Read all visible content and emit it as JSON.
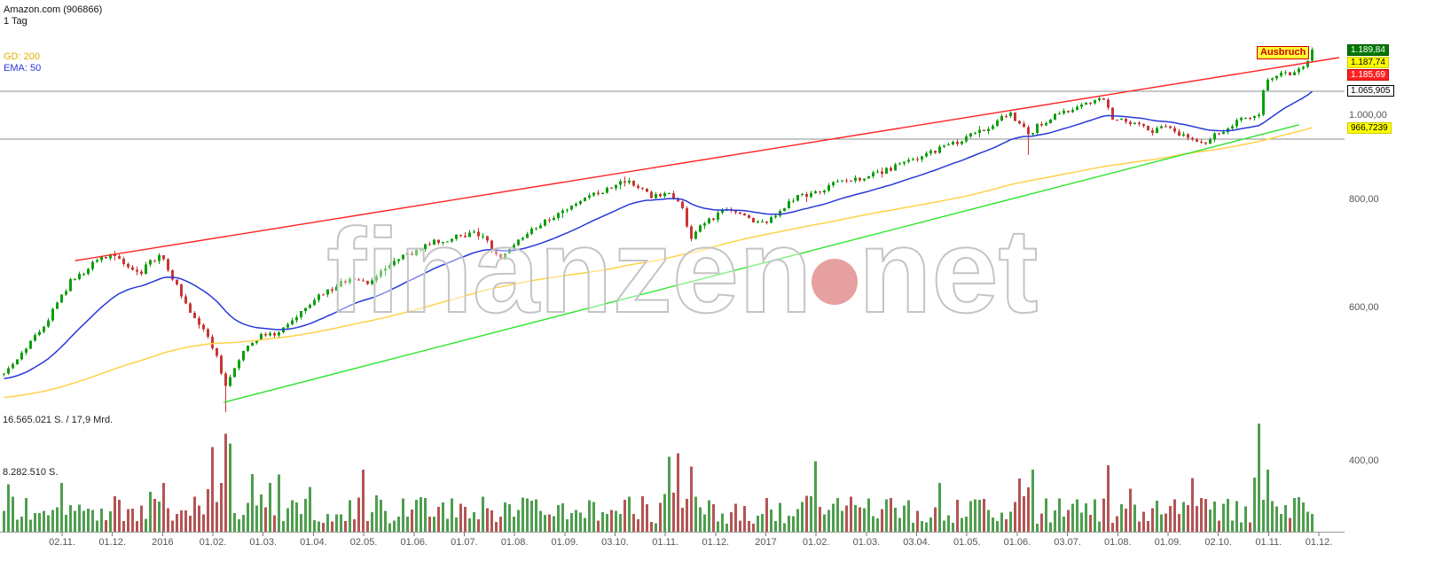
{
  "header": {
    "title": "Amazon.com (906866)",
    "period": "1 Tag"
  },
  "legend": {
    "gd": "GD: 200",
    "ema": "EMA: 50"
  },
  "annotations": {
    "ausbruch": "Ausbruch"
  },
  "watermark": {
    "part1": "finanzen",
    "part2": "net"
  },
  "chart_data": {
    "type": "candlestick+volume",
    "instrument": "Amazon.com",
    "wkn": "906866",
    "timeframe": "1 Tag",
    "y_scale": "log",
    "ylim": [
      380,
      1260
    ],
    "seed": 20171124,
    "candle_count": 296,
    "warmup_start_price": 440,
    "y_ticks": [
      {
        "label": "1.000,00",
        "value": 1000
      },
      {
        "label": "800,00",
        "value": 800
      },
      {
        "label": "600,00",
        "value": 600
      },
      {
        "label": "400,00",
        "value": 400
      }
    ],
    "x_ticks": [
      "02.11.",
      "01.12.",
      "2016",
      "01.02.",
      "01.03.",
      "01.04.",
      "02.05.",
      "01.06.",
      "01.07.",
      "01.08.",
      "01.09.",
      "03.10.",
      "01.11.",
      "01.12.",
      "2017",
      "01.02.",
      "01.03.",
      "03.04.",
      "01.05.",
      "01.06.",
      "03.07.",
      "01.08.",
      "01.09.",
      "02.10.",
      "01.11.",
      "01.12."
    ],
    "price_tags": [
      {
        "text": "1.189,84",
        "value": 1189.84,
        "bg": "#007700",
        "fg": "#ffffff",
        "border": "#005500"
      },
      {
        "text": "1.187,74",
        "value": 1187.74,
        "bg": "#ffff00",
        "fg": "#000000",
        "border": "#cccc00"
      },
      {
        "text": "1.185,69",
        "value": 1185.69,
        "bg": "#ff2222",
        "fg": "#ffffff",
        "border": "#cc0000"
      },
      {
        "text": "1.065,905",
        "value": 1065.905,
        "bg": "#ffffff",
        "fg": "#000000",
        "border": "#000000"
      },
      {
        "text": "966,7239",
        "value": 966.7239,
        "bg": "#ffff00",
        "fg": "#000000",
        "border": "#cccc00"
      }
    ],
    "levels": [
      {
        "price": 1065.905,
        "label": "1.065,905"
      },
      {
        "price": 938,
        "label": ""
      }
    ],
    "trendlines": [
      {
        "name": "resistance",
        "color": "#ff2222",
        "p1": [
          0.056,
          680
        ],
        "p2": [
          1.0,
          1165
        ]
      },
      {
        "name": "support",
        "color": "#2fe42f",
        "p1": [
          0.167,
          467
        ],
        "p2": [
          0.97,
          975
        ]
      }
    ],
    "indicators": [
      {
        "name": "GD 200",
        "color": "#ffd24a",
        "period_candles": 109,
        "end_value": 966.7239
      },
      {
        "name": "EMA 50",
        "color": "#2738d8",
        "period_candles": 27,
        "end_value": 1065.905
      }
    ],
    "long_wicks": [
      {
        "f": 0.17,
        "low": 455
      },
      {
        "f": 0.782,
        "low": 900
      }
    ],
    "price_anchors": [
      [
        0,
        505
      ],
      [
        0.01,
        520
      ],
      [
        0.027,
        560
      ],
      [
        0.041,
        600
      ],
      [
        0.051,
        640
      ],
      [
        0.064,
        665
      ],
      [
        0.074,
        680
      ],
      [
        0.084,
        695
      ],
      [
        0.095,
        672
      ],
      [
        0.105,
        658
      ],
      [
        0.115,
        680
      ],
      [
        0.12,
        692
      ],
      [
        0.132,
        640
      ],
      [
        0.142,
        600
      ],
      [
        0.152,
        572
      ],
      [
        0.162,
        538
      ],
      [
        0.17,
        482
      ],
      [
        0.177,
        512
      ],
      [
        0.186,
        545
      ],
      [
        0.196,
        556
      ],
      [
        0.209,
        560
      ],
      [
        0.22,
        576
      ],
      [
        0.23,
        595
      ],
      [
        0.243,
        620
      ],
      [
        0.257,
        640
      ],
      [
        0.27,
        652
      ],
      [
        0.28,
        641
      ],
      [
        0.294,
        668
      ],
      [
        0.307,
        690
      ],
      [
        0.318,
        700
      ],
      [
        0.331,
        715
      ],
      [
        0.345,
        722
      ],
      [
        0.358,
        731
      ],
      [
        0.368,
        723
      ],
      [
        0.378,
        682
      ],
      [
        0.386,
        696
      ],
      [
        0.399,
        728
      ],
      [
        0.412,
        754
      ],
      [
        0.426,
        770
      ],
      [
        0.439,
        790
      ],
      [
        0.453,
        812
      ],
      [
        0.466,
        830
      ],
      [
        0.476,
        838
      ],
      [
        0.486,
        820
      ],
      [
        0.497,
        806
      ],
      [
        0.507,
        820
      ],
      [
        0.517,
        788
      ],
      [
        0.526,
        718
      ],
      [
        0.534,
        752
      ],
      [
        0.546,
        768
      ],
      [
        0.557,
        780
      ],
      [
        0.568,
        760
      ],
      [
        0.578,
        750
      ],
      [
        0.588,
        762
      ],
      [
        0.598,
        790
      ],
      [
        0.608,
        808
      ],
      [
        0.622,
        818
      ],
      [
        0.635,
        836
      ],
      [
        0.649,
        845
      ],
      [
        0.662,
        852
      ],
      [
        0.676,
        866
      ],
      [
        0.689,
        884
      ],
      [
        0.699,
        892
      ],
      [
        0.709,
        906
      ],
      [
        0.72,
        924
      ],
      [
        0.73,
        936
      ],
      [
        0.74,
        950
      ],
      [
        0.75,
        966
      ],
      [
        0.76,
        990
      ],
      [
        0.767,
        1006
      ],
      [
        0.777,
        978
      ],
      [
        0.782,
        948
      ],
      [
        0.791,
        976
      ],
      [
        0.801,
        1000
      ],
      [
        0.811,
        1012
      ],
      [
        0.821,
        1022
      ],
      [
        0.831,
        1032
      ],
      [
        0.841,
        1046
      ],
      [
        0.846,
        992
      ],
      [
        0.855,
        986
      ],
      [
        0.865,
        976
      ],
      [
        0.875,
        956
      ],
      [
        0.885,
        966
      ],
      [
        0.895,
        956
      ],
      [
        0.905,
        936
      ],
      [
        0.912,
        922
      ],
      [
        0.922,
        944
      ],
      [
        0.932,
        962
      ],
      [
        0.943,
        986
      ],
      [
        0.951,
        996
      ],
      [
        0.958,
        1002
      ],
      [
        0.963,
        1096
      ],
      [
        0.97,
        1106
      ],
      [
        0.976,
        1112
      ],
      [
        0.983,
        1122
      ],
      [
        0.988,
        1132
      ],
      [
        0.992,
        1142
      ],
      [
        0.995,
        1162
      ],
      [
        1,
        1189.84
      ]
    ],
    "volume": {
      "max_value": 16565021,
      "labels": [
        {
          "text": "16.565.021 S. / 17,9 Mrd.",
          "value": 16565021
        },
        {
          "text": "8.282.510 S.",
          "value": 8282510
        }
      ],
      "spikes": [
        [
          0.044,
          7500000
        ],
        [
          0.159,
          13000000
        ],
        [
          0.168,
          15000000
        ],
        [
          0.174,
          13500000
        ],
        [
          0.191,
          8800000
        ],
        [
          0.203,
          7500000
        ],
        [
          0.274,
          9500000
        ],
        [
          0.507,
          11500000
        ],
        [
          0.515,
          12000000
        ],
        [
          0.524,
          10000000
        ],
        [
          0.622,
          10800000
        ],
        [
          0.716,
          7500000
        ],
        [
          0.787,
          9500000
        ],
        [
          0.843,
          10200000
        ],
        [
          0.909,
          8200000
        ],
        [
          0.959,
          16565021
        ],
        [
          0.965,
          9500000
        ]
      ]
    }
  }
}
